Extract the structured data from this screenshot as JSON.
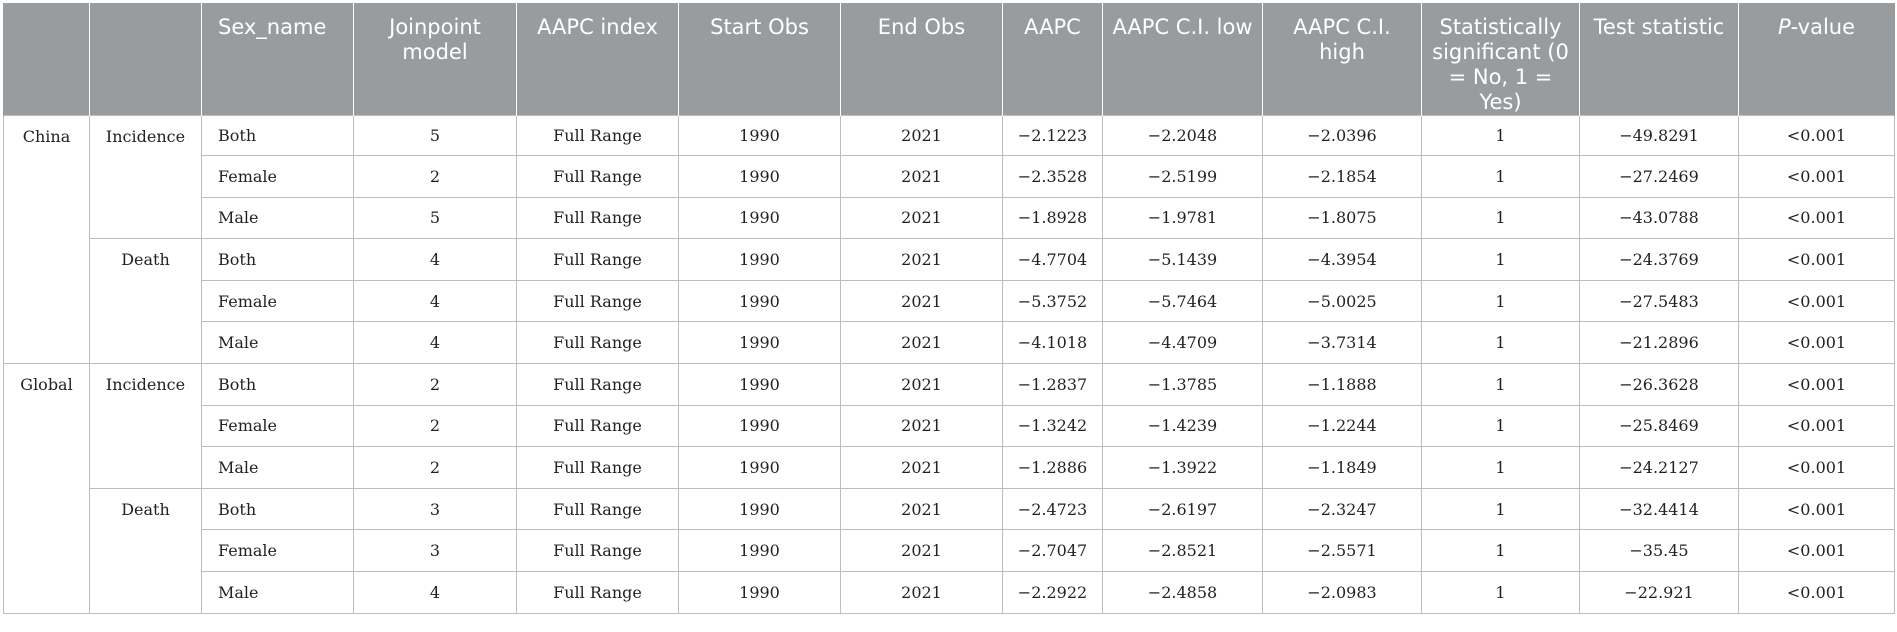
{
  "headers": {
    "c0": "",
    "c1": "",
    "sex_name": "Sex_name",
    "joinpoint_model": "Joinpoint model",
    "aapc_index": "AAPC index",
    "start_obs": "Start Obs",
    "end_obs": "End Obs",
    "aapc": "AAPC",
    "aapc_ci_low": "AAPC C.I. low",
    "aapc_ci_high": "AAPC C.I. high",
    "stat_sig": "Statistically significant (0 = No, 1 = Yes)",
    "test_statistic": "Test statistic",
    "p_value_italic": "P",
    "p_value_rest": "-value"
  },
  "rows": [
    {
      "region": "China",
      "measure": "Incidence",
      "sex": "Both",
      "model": "5",
      "index": "Full Range",
      "start": "1990",
      "end": "2021",
      "aapc": "−2.1223",
      "low": "−2.2048",
      "high": "−2.0396",
      "sig": "1",
      "stat": "−49.8291",
      "p": "<0.001"
    },
    {
      "region": "China",
      "measure": "Incidence",
      "sex": "Female",
      "model": "2",
      "index": "Full Range",
      "start": "1990",
      "end": "2021",
      "aapc": "−2.3528",
      "low": "−2.5199",
      "high": "−2.1854",
      "sig": "1",
      "stat": "−27.2469",
      "p": "<0.001"
    },
    {
      "region": "China",
      "measure": "Incidence",
      "sex": "Male",
      "model": "5",
      "index": "Full Range",
      "start": "1990",
      "end": "2021",
      "aapc": "−1.8928",
      "low": "−1.9781",
      "high": "−1.8075",
      "sig": "1",
      "stat": "−43.0788",
      "p": "<0.001"
    },
    {
      "region": "China",
      "measure": "Death",
      "sex": "Both",
      "model": "4",
      "index": "Full Range",
      "start": "1990",
      "end": "2021",
      "aapc": "−4.7704",
      "low": "−5.1439",
      "high": "−4.3954",
      "sig": "1",
      "stat": "−24.3769",
      "p": "<0.001"
    },
    {
      "region": "China",
      "measure": "Death",
      "sex": "Female",
      "model": "4",
      "index": "Full Range",
      "start": "1990",
      "end": "2021",
      "aapc": "−5.3752",
      "low": "−5.7464",
      "high": "−5.0025",
      "sig": "1",
      "stat": "−27.5483",
      "p": "<0.001"
    },
    {
      "region": "China",
      "measure": "Death",
      "sex": "Male",
      "model": "4",
      "index": "Full Range",
      "start": "1990",
      "end": "2021",
      "aapc": "−4.1018",
      "low": "−4.4709",
      "high": "−3.7314",
      "sig": "1",
      "stat": "−21.2896",
      "p": "<0.001"
    },
    {
      "region": "Global",
      "measure": "Incidence",
      "sex": "Both",
      "model": "2",
      "index": "Full Range",
      "start": "1990",
      "end": "2021",
      "aapc": "−1.2837",
      "low": "−1.3785",
      "high": "−1.1888",
      "sig": "1",
      "stat": "−26.3628",
      "p": "<0.001"
    },
    {
      "region": "Global",
      "measure": "Incidence",
      "sex": "Female",
      "model": "2",
      "index": "Full Range",
      "start": "1990",
      "end": "2021",
      "aapc": "−1.3242",
      "low": "−1.4239",
      "high": "−1.2244",
      "sig": "1",
      "stat": "−25.8469",
      "p": "<0.001"
    },
    {
      "region": "Global",
      "measure": "Incidence",
      "sex": "Male",
      "model": "2",
      "index": "Full Range",
      "start": "1990",
      "end": "2021",
      "aapc": "−1.2886",
      "low": "−1.3922",
      "high": "−1.1849",
      "sig": "1",
      "stat": "−24.2127",
      "p": "<0.001"
    },
    {
      "region": "Global",
      "measure": "Death",
      "sex": "Both",
      "model": "3",
      "index": "Full Range",
      "start": "1990",
      "end": "2021",
      "aapc": "−2.4723",
      "low": "−2.6197",
      "high": "−2.3247",
      "sig": "1",
      "stat": "−32.4414",
      "p": "<0.001"
    },
    {
      "region": "Global",
      "measure": "Death",
      "sex": "Female",
      "model": "3",
      "index": "Full Range",
      "start": "1990",
      "end": "2021",
      "aapc": "−2.7047",
      "low": "−2.8521",
      "high": "−2.5571",
      "sig": "1",
      "stat": "−35.45",
      "p": "<0.001"
    },
    {
      "region": "Global",
      "measure": "Death",
      "sex": "Male",
      "model": "4",
      "index": "Full Range",
      "start": "1990",
      "end": "2021",
      "aapc": "−2.2922",
      "low": "−2.4858",
      "high": "−2.0983",
      "sig": "1",
      "stat": "−22.921",
      "p": "<0.001"
    }
  ]
}
